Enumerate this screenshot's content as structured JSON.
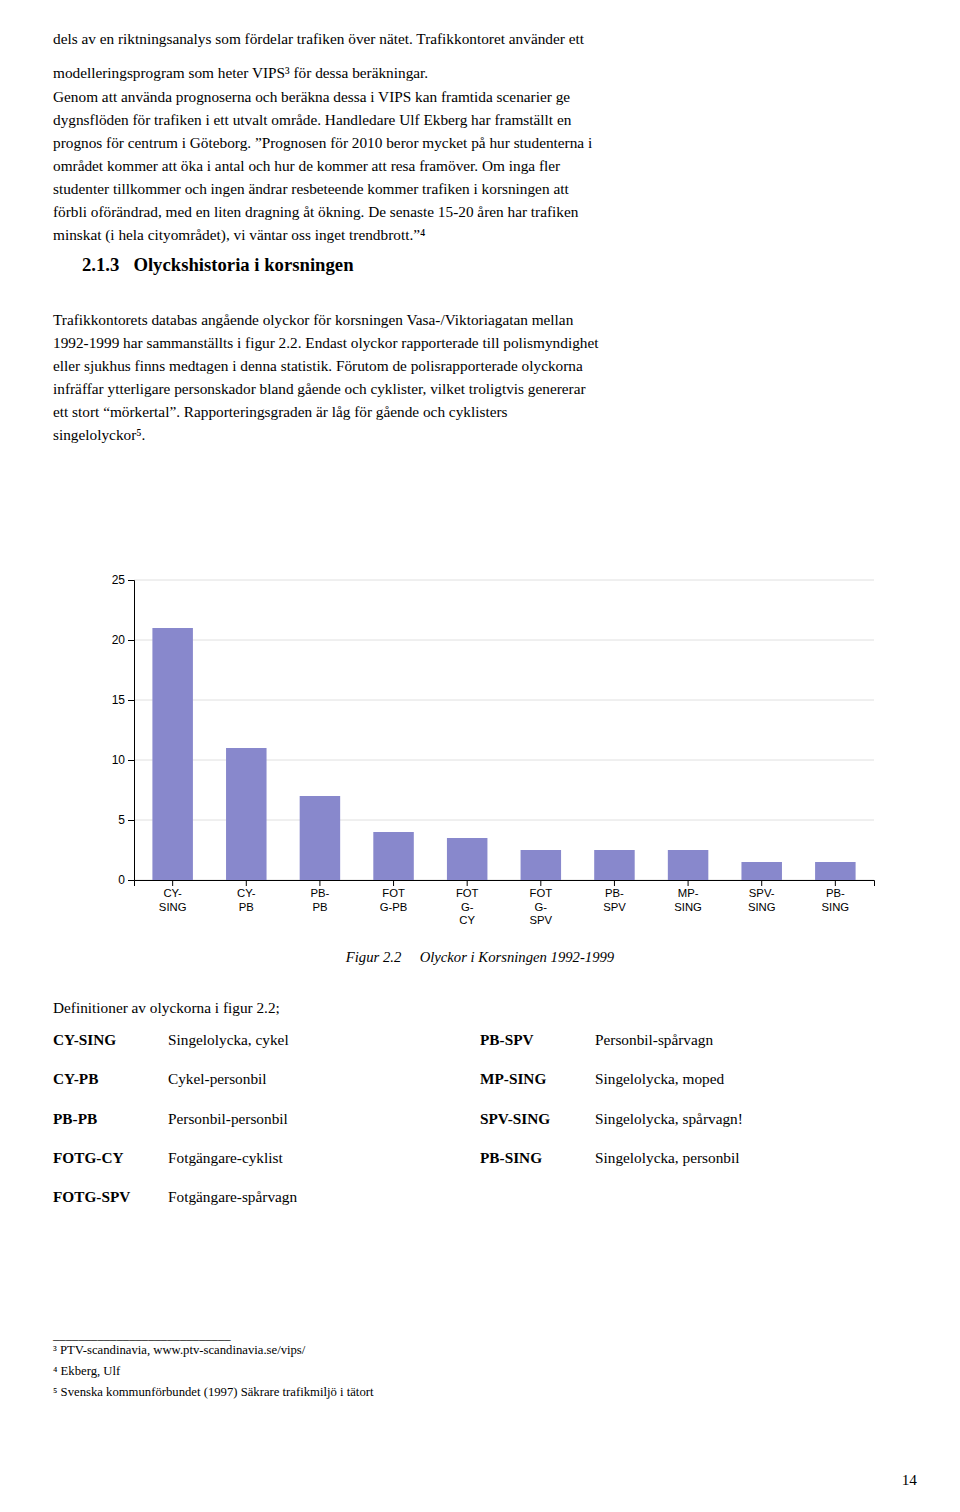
{
  "chart_data": {
    "type": "bar",
    "title": "Figur 2.2     Olyckor i Korsningen 1992-1999",
    "categories": [
      "CY-\nSING",
      "CY-\nPB",
      "PB-\nPB",
      "FOT\nG-PB",
      "FOT\nG-\nCY",
      "FOT\nG-\nSPV",
      "PB-\nSPV",
      "MP-\nSING",
      "SPV-\nSING",
      "PB-\nSING"
    ],
    "values": [
      21,
      11,
      7,
      4,
      3.5,
      2.5,
      2.5,
      2.5,
      1.5,
      1.5
    ],
    "color": "#8888cc",
    "ylim": [
      0,
      25
    ],
    "yticks": [
      0,
      5,
      10,
      15,
      20,
      25
    ],
    "grid": true
  },
  "page": {
    "intro_lines": [
      "dels av en riktningsanalys som fördelar trafiken över nätet. Trafikkontoret använder ett",
      "modelleringsprogram som heter VIPS³ för dessa beräkningar."
    ],
    "paragraph_2": "Genom att använda prognoserna och beräkna dessa i VIPS kan framtida scenarier ge\ndygnsflöden för trafiken i ett utvalt område. Handledare Ulf Ekberg har framställt en\nprognos för centrum i Göteborg. ”Prognosen för 2010 beror mycket på hur studenterna i\nområdet kommer att öka i antal och hur de kommer att resa framöver. Om inga fler\nstudenter tillkommer och ingen ändrar resbeteende kommer trafiken i korsningen att\nförbli oförändrad, med en liten dragning åt ökning. De senaste 15-20 åren har trafiken\nminskat (i hela cityområdet), vi väntar oss inget trendbrott.”⁴",
    "heading": "2.1.3   Olyckshistoria i korsningen",
    "paragraph_3": "Trafikkontorets databas angående olyckor för korsningen Vasa-/Viktoriagatan mellan\n1992-1999 har sammanställts i figur 2.2. Endast olyckor rapporterade till polismyndighet\neller sjukhus finns medtagen i denna statistik. Förutom de polisrapporterade olyckorna\ninfräffar ytterligare personskador bland gående och cyklister, vilket troligtvis genererar\nett stort “mörkertal”. Rapporteringsgraden är låg för gående och cyklisters\nsingelolyckor⁵.",
    "definitions_title": "Definitioner av olyckorna i figur 2.2;",
    "definitions_left": [
      {
        "code": "CY-SING",
        "text": "Singelolycka, cykel"
      },
      {
        "code": "CY-PB",
        "text": "Cykel-personbil"
      },
      {
        "code": "PB-PB",
        "text": "Personbil-personbil"
      },
      {
        "code": "FOTG-CY",
        "text": "Fotgängare-cyklist"
      },
      {
        "code": "FOTG-SPV",
        "text": "Fotgängare-spårvagn"
      }
    ],
    "definitions_right": [
      {
        "code": "PB-SPV",
        "text": "Personbil-spårvagn"
      },
      {
        "code": "MP-SING",
        "text": "Singelolycka, moped"
      },
      {
        "code": "SPV-SING",
        "text": "Singelolycka, spårvagn!"
      },
      {
        "code": "PB-SING",
        "text": "Singelolycka, personbil"
      }
    ],
    "footnote_rule": "____________________________",
    "footnotes": [
      "³ PTV-scandinavia, www.ptv-scandinavia.se/vips/",
      "⁴ Ekberg, Ulf",
      "⁵ Svenska kommunförbundet (1997) Säkrare trafikmiljö i tätort"
    ],
    "page_number": "14"
  }
}
